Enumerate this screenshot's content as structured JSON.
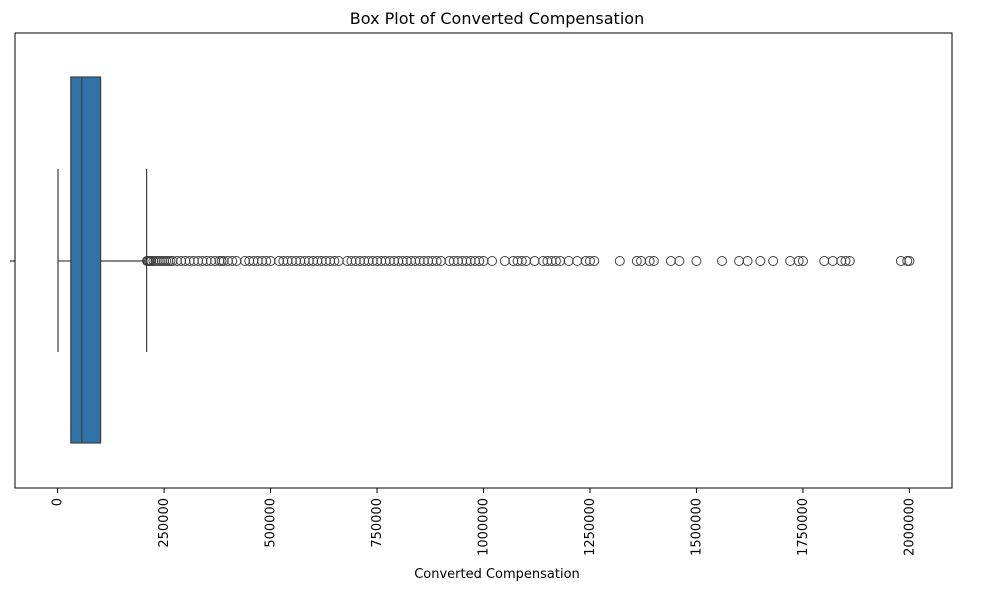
{
  "chart_data": {
    "type": "boxplot",
    "title": "Box Plot of Converted Compensation",
    "xlabel": "Converted Compensation",
    "ylabel": "",
    "xlim": [
      -100000,
      2100000
    ],
    "orientation": "horizontal",
    "grid": false,
    "legend": "none",
    "x_ticks": [
      0,
      250000,
      500000,
      750000,
      1000000,
      1250000,
      1500000,
      1750000,
      2000000
    ],
    "x_tick_labels": [
      "0",
      "250000",
      "500000",
      "750000",
      "1000000",
      "1250000",
      "1500000",
      "1750000",
      "2000000"
    ],
    "box": {
      "whisker_low": 1000,
      "q1": 31000,
      "median": 57000,
      "q3": 101000,
      "whisker_high": 209000
    },
    "color": "#2f72a8",
    "edge_color": "#3f3f3f",
    "outliers": [
      210000,
      212000,
      215000,
      218000,
      220000,
      225000,
      230000,
      235000,
      240000,
      245000,
      250000,
      255000,
      260000,
      265000,
      270000,
      280000,
      290000,
      300000,
      310000,
      320000,
      330000,
      340000,
      350000,
      360000,
      370000,
      380000,
      385000,
      390000,
      400000,
      410000,
      420000,
      440000,
      450000,
      460000,
      470000,
      480000,
      490000,
      500000,
      520000,
      530000,
      540000,
      550000,
      560000,
      570000,
      580000,
      590000,
      600000,
      610000,
      620000,
      630000,
      640000,
      650000,
      660000,
      680000,
      690000,
      700000,
      710000,
      720000,
      730000,
      740000,
      750000,
      760000,
      770000,
      780000,
      790000,
      800000,
      810000,
      820000,
      830000,
      840000,
      850000,
      860000,
      870000,
      880000,
      890000,
      900000,
      920000,
      930000,
      940000,
      950000,
      960000,
      970000,
      980000,
      990000,
      1000000,
      1020000,
      1050000,
      1070000,
      1080000,
      1090000,
      1100000,
      1120000,
      1140000,
      1150000,
      1160000,
      1170000,
      1180000,
      1200000,
      1220000,
      1240000,
      1250000,
      1260000,
      1320000,
      1360000,
      1370000,
      1390000,
      1400000,
      1440000,
      1460000,
      1500000,
      1560000,
      1600000,
      1620000,
      1650000,
      1680000,
      1720000,
      1740000,
      1750000,
      1800000,
      1820000,
      1840000,
      1850000,
      1860000,
      1980000,
      1995000,
      2000000
    ]
  }
}
